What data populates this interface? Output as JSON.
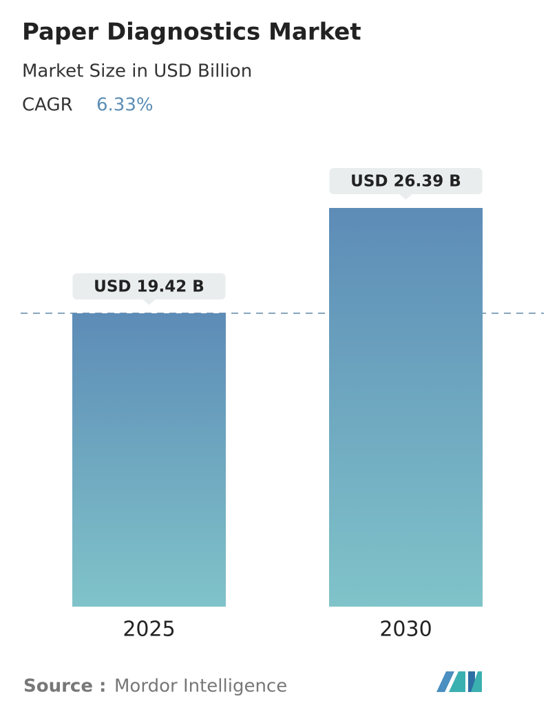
{
  "chart_data": {
    "type": "bar",
    "title": "Paper Diagnostics Market",
    "subtitle": "Market Size in USD Billion",
    "cagr_label": "CAGR",
    "cagr_value": "6.33%",
    "categories": [
      "2025",
      "2030"
    ],
    "values": [
      19.42,
      26.39
    ],
    "value_labels": [
      "USD 19.42 B",
      "USD 26.39 B"
    ],
    "color": [
      "#5d8cb7",
      "#80c3c9"
    ],
    "source_label": "Source :",
    "source": "Mordor Intelligence"
  }
}
